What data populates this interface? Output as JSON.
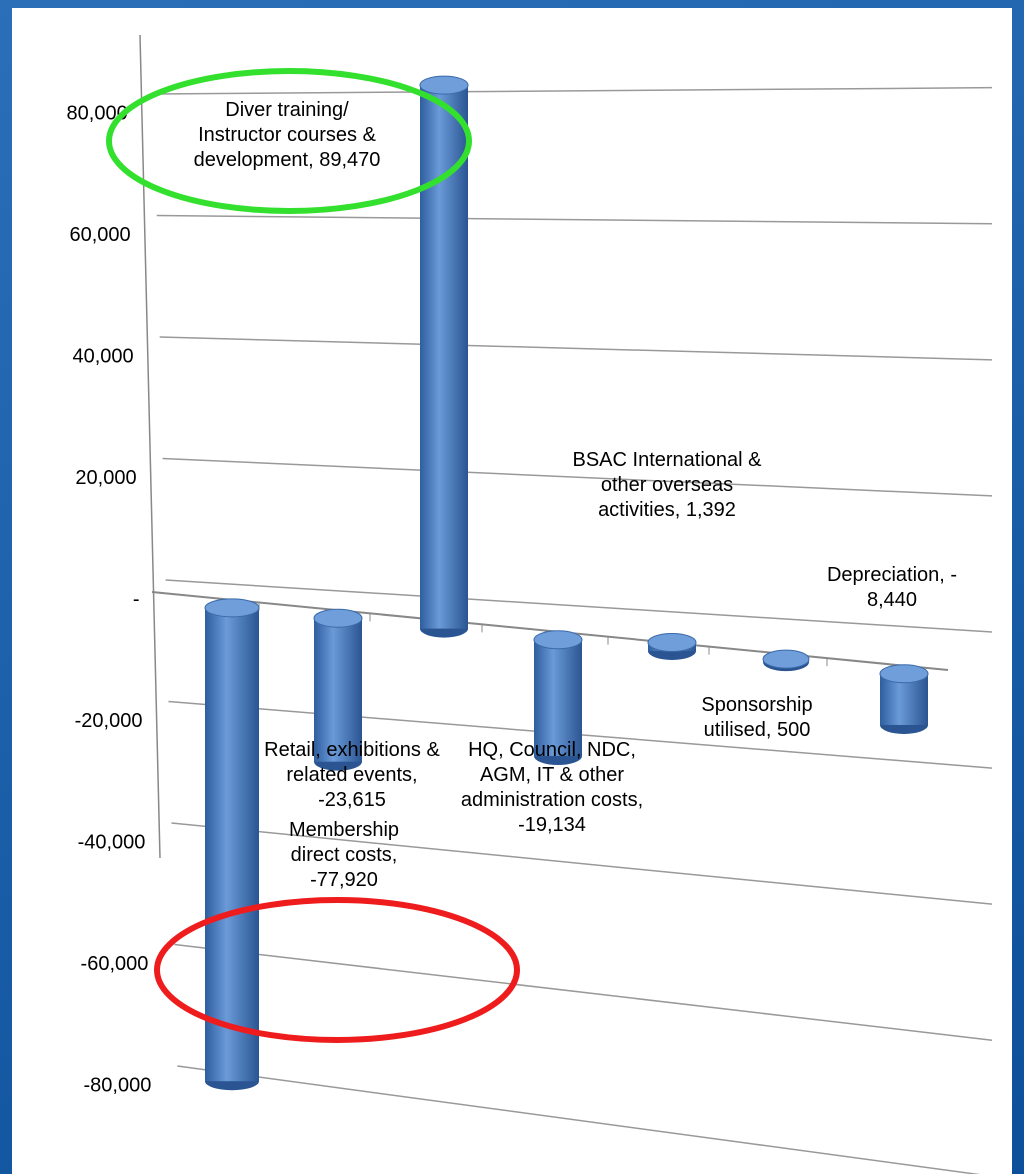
{
  "chart_data": {
    "type": "bar3d",
    "value_labels": [
      "Membership direct costs, -77,920",
      "Retail, exhibitions & related events, -23,615",
      "Diver training/ Instructor courses & development, 89,470",
      "HQ, Council, NDC, AGM, IT & other administration costs, -19,134",
      "BSAC International & other overseas activities,  1,392",
      "Sponsorship utilised,  500",
      "Depreciation, - 8,440"
    ],
    "values": [
      -77920,
      -23615,
      89470,
      -19134,
      1392,
      500,
      -8440
    ],
    "color": "#4a7cc0",
    "ylim": [
      -80000,
      80000
    ],
    "yticks": [
      {
        "value": -80000,
        "label": "-80,000"
      },
      {
        "value": -60000,
        "label": "-60,000"
      },
      {
        "value": -40000,
        "label": "-40,000"
      },
      {
        "value": -20000,
        "label": "-20,000"
      },
      {
        "value": 0,
        "label": "-"
      },
      {
        "value": 20000,
        "label": "20,000"
      },
      {
        "value": 40000,
        "label": "40,000"
      },
      {
        "value": 60000,
        "label": "60,000"
      },
      {
        "value": 80000,
        "label": "80,000"
      }
    ],
    "grid": true
  }
}
